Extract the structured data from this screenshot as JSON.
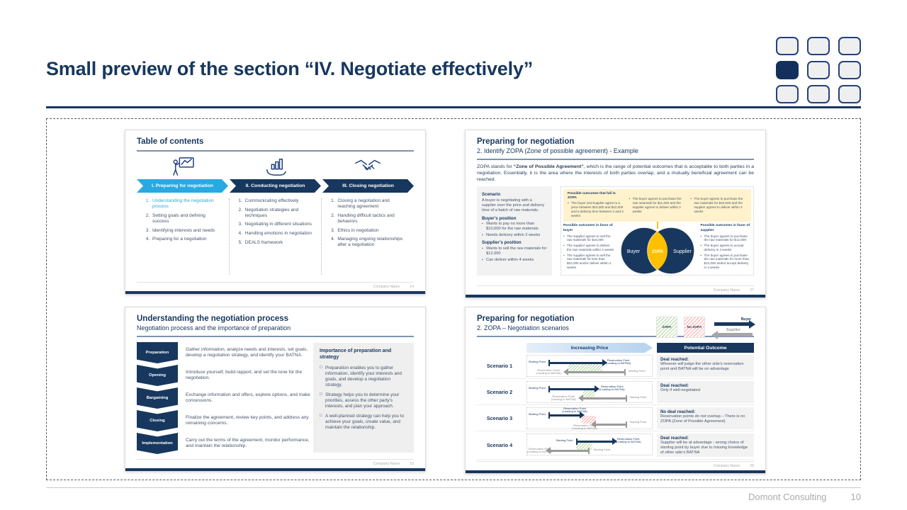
{
  "page": {
    "title": "Small preview of the section “IV. Negotiate effectively”",
    "footer": {
      "company": "Domont Consulting",
      "page_number": "10"
    },
    "colors": {
      "navy": "#17375E",
      "light_blue": "#29A9E1",
      "yellow": "#FFC000",
      "pale_yellow": "#FFF2CC",
      "gray_box": "#F2F2F2"
    }
  },
  "slide1": {
    "title": "Table of contents",
    "columns": [
      {
        "banner": "I. Preparing for negotiation",
        "icon": "presenter-icon",
        "items": [
          "Understanding the negotiation process",
          "Setting goals and defining success",
          "Identifying interests and needs",
          "Preparing for a negotiation"
        ]
      },
      {
        "banner": "II. Conducting negotiation",
        "icon": "growth-hand-icon",
        "items": [
          "Communicating effectively",
          "Negotiation strategies and techniques",
          "Negotiating in different situations",
          "Handling emotions in negotiation",
          "DEALS framework"
        ]
      },
      {
        "banner": "III. Closing negotiation",
        "icon": "handshake-icon",
        "items": [
          "Closing a negotiation and reaching agreement",
          "Handling difficult tactics and behaviors",
          "Ethics in negotiation",
          "Managing ongoing relationships after a negotiation"
        ]
      }
    ],
    "footer": {
      "company": "Company Name",
      "page": "14"
    }
  },
  "slide2": {
    "title": "Preparing for negotiation",
    "subtitle": "2. Identify ZOPA (Zone of possible agreement) - Example",
    "intro_pre": "ZOPA stands for ",
    "intro_bold": "“Zone of Possible Agreement”",
    "intro_post": ", which is the range of potential outcomes that is acceptable to both parties in a negotiation. Essentially, it is the area where the interests of both parties overlap, and a mutually beneficial agreement can be reached.",
    "scenario": {
      "title": "Scenario",
      "text": "A buyer is negotiating with a supplier over the price and delivery time of a batch of raw materials.",
      "buyer_title": "Buyer’s position",
      "buyer_items": [
        "Wants to pay no more than $10,000 for the raw materials",
        "Needs delivery within 2 weeks"
      ],
      "supplier_title": "Supplier’s position",
      "supplier_items": [
        "Wants to sell the raw materials for $12,000",
        "Can deliver within 4 weeks"
      ]
    },
    "zopa_box": {
      "title": "Possible outcomes that fall in ZOPA",
      "bullets": [
        "The buyer and supplier agree to a price between $10,000 and $12,000 and a delivery time between 2 and 4 weeks",
        "The buyer agrees to purchase the raw materials for $11,000 and the supplier agrees to deliver within 2 weeks",
        "The buyer agrees to purchase the raw materials for $10,500 and the supplier agrees to deliver within 3 weeks"
      ]
    },
    "buyer_box": {
      "title": "Possible outcomes in favor of buyer",
      "bullets": [
        "The supplier agrees to sell the raw materials for $10,000",
        "The supplier agrees to deliver the raw materials within 2 weeks",
        "The supplier agrees to sell the raw materials for less than $10,000 and/or deliver within 2 weeks"
      ]
    },
    "supplier_box": {
      "title": "Possible outcomes in favor of supplier",
      "bullets": [
        "The buyer agrees to purchase the raw materials for $12,000",
        "The buyer agrees to accept delivery in 4 weeks",
        "The buyer agrees to purchase the raw materials for more than $12,000 and/or accept delivery in 4 weeks"
      ]
    },
    "venn": {
      "left": "Buyer",
      "center": "ZOPA",
      "right": "Supplier"
    },
    "footer": {
      "company": "Company Name",
      "page": "27"
    }
  },
  "slide3": {
    "title": "Understanding the negotiation process",
    "subtitle": "Negotiation process and the importance of preparation",
    "stages": [
      {
        "label": "Preparation",
        "desc": "Gather information, analyze needs and interests, set goals, develop a negotiation strategy, and identify your BATNA."
      },
      {
        "label": "Opening",
        "desc": "Introduce yourself, build rapport, and set the tone for the negotiation."
      },
      {
        "label": "Bargaining",
        "desc": "Exchange information and offers, explore options, and make concessions."
      },
      {
        "label": "Closing",
        "desc": "Finalize the agreement, review key points, and address any remaining concerns."
      },
      {
        "label": "Implementation",
        "desc": "Carry out the terms of the agreement, monitor performance, and maintain the relationship."
      }
    ],
    "importance": {
      "title": "Importance of preparation and strategy",
      "bullets": [
        "Preparation enables you to gather information, identify your interests and goals, and develop a negotiation strategy.",
        "Strategy helps you to determine your priorities, assess the other party's interests, and plan your approach.",
        "A well-planned strategy can help you to achieve your goals, create value, and maintain the relationship."
      ]
    },
    "footer": {
      "company": "Company Name",
      "page": "15"
    }
  },
  "slide4": {
    "title": "Preparing for negotiation",
    "subtitle": "2. ZOPA – Negotiation scenarios",
    "legend": {
      "zopa": "ZOPA",
      "no_zopa": "No ZOPA",
      "buyer": "Buyer",
      "supplier": "Supplier"
    },
    "col_headers": {
      "price": "Increasing Price",
      "outcome": "Potential Outcome"
    },
    "labels": {
      "start": "Starting Point",
      "res1": "Reservation Point",
      "res2": "(Leading to BATNA)"
    },
    "scenarios": [
      {
        "name": "Scenario 1",
        "outcome_title": "Deal reached:",
        "outcome_text": "Whoever will judge the other side’s reservation point and BATNA will be on advantage",
        "overlap": "green"
      },
      {
        "name": "Scenario 2",
        "outcome_title": "Deal reached:",
        "outcome_text": "Only if well-negotiated",
        "overlap": "green"
      },
      {
        "name": "Scenario 3",
        "outcome_title": "No deal reached:",
        "outcome_text": "Reservation points do not overlap – There is no ZOPA (Zone of Possible Agreement)",
        "overlap": "red"
      },
      {
        "name": "Scenario 4",
        "outcome_title": "Deal reached:",
        "outcome_text": "Supplier will be at advantage - wrong choice of starting point by buyer due to missing knowledge of other side’s BATNA",
        "overlap": "green"
      }
    ],
    "footer": {
      "company": "Company Name",
      "page": "28"
    }
  }
}
